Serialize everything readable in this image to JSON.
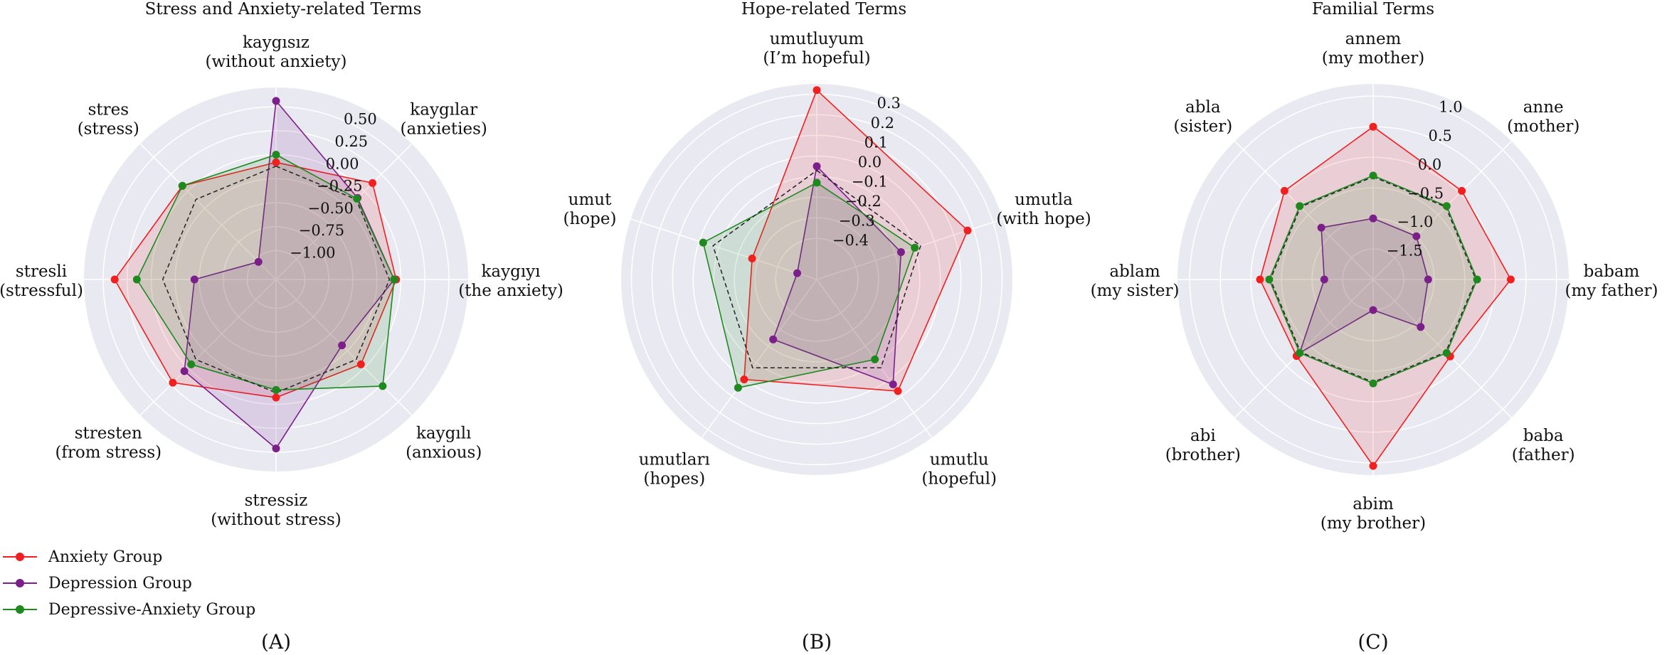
{
  "colors": {
    "anxiety": "#f21f1f",
    "depression": "#7d1f8a",
    "depressive_anxiety": "#1e8a1e",
    "baseline": "#222222",
    "background": "#e9e9f2",
    "grid": "#ffffff"
  },
  "legend": {
    "placement": "bottom-left",
    "items": [
      {
        "label": "Anxiety Group",
        "color": "#f21f1f"
      },
      {
        "label": "Depression Group",
        "color": "#7d1f8a"
      },
      {
        "label": "Depressive-Anxiety Group",
        "color": "#1e8a1e"
      }
    ]
  },
  "chart_data": [
    {
      "type": "radar",
      "panel_label": "(A)",
      "title": "Stress and Anxiety-related Terms",
      "rlim": [
        -1.3,
        0.7
      ],
      "rticks": [
        -1.0,
        -0.75,
        -0.5,
        -0.25,
        0.0,
        0.25,
        0.5
      ],
      "rtick_labels": [
        "−1.00",
        "−0.75",
        "−0.50",
        "−0.25",
        "0.00",
        "0.25",
        "0.50"
      ],
      "axes": [
        {
          "term": "kaygısız",
          "gloss": "(without anxiety)"
        },
        {
          "term": "kaygılar",
          "gloss": "(anxieties)"
        },
        {
          "term": "kaygıyı",
          "gloss": "(the anxiety)"
        },
        {
          "term": "kaygılı",
          "gloss": "(anxious)"
        },
        {
          "term": "stressiz",
          "gloss": "(without stress)"
        },
        {
          "term": "stresten",
          "gloss": "(from stress)"
        },
        {
          "term": "stresli",
          "gloss": "(stressful)"
        },
        {
          "term": "stres",
          "gloss": "(stress)"
        }
      ],
      "series": [
        {
          "name": "Anxiety Group",
          "values": [
            -0.08,
            0.12,
            -0.05,
            -0.05,
            -0.07,
            0.22,
            0.38,
            0.08
          ]
        },
        {
          "name": "Depression Group",
          "values": [
            0.56,
            -0.1,
            -0.07,
            -0.33,
            0.46,
            0.05,
            -0.45,
            -1.04
          ]
        },
        {
          "name": "Depressive-Anxiety Group",
          "values": [
            0.0,
            -0.11,
            -0.07,
            0.27,
            -0.15,
            -0.05,
            0.15,
            0.08
          ]
        }
      ],
      "baseline": [
        -0.12,
        -0.12,
        -0.12,
        -0.12,
        -0.12,
        -0.12,
        -0.12,
        -0.12
      ]
    },
    {
      "type": "radar",
      "panel_label": "(B)",
      "title": "Hope-related Terms",
      "rlim": [
        -0.6,
        0.35
      ],
      "rticks": [
        -0.4,
        -0.3,
        -0.2,
        -0.1,
        0.0,
        0.1,
        0.2,
        0.3
      ],
      "rtick_labels": [
        "−0.4",
        "−0.3",
        "−0.2",
        "−0.1",
        "0.0",
        "0.1",
        "0.2",
        "0.3"
      ],
      "axes": [
        {
          "term": "umutluyum",
          "gloss": "(I’m hopeful)"
        },
        {
          "term": "umutla",
          "gloss": "(with hope)"
        },
        {
          "term": "umutlu",
          "gloss": "(hopeful)"
        },
        {
          "term": "umutları",
          "gloss": "(hopes)"
        },
        {
          "term": "umut",
          "gloss": "(hope)"
        }
      ],
      "series": [
        {
          "name": "Anxiety Group",
          "values": [
            0.32,
            0.17,
            0.07,
            0.0,
            -0.27
          ]
        },
        {
          "name": "Depression Group",
          "values": [
            -0.05,
            -0.17,
            0.03,
            -0.24,
            -0.5
          ]
        },
        {
          "name": "Depressive-Anxiety Group",
          "values": [
            -0.13,
            -0.1,
            -0.12,
            0.05,
            -0.02
          ]
        }
      ],
      "baseline": [
        -0.07,
        -0.07,
        -0.07,
        -0.07,
        -0.07
      ]
    },
    {
      "type": "radar",
      "panel_label": "(C)",
      "title": "Familial Terms",
      "rlim": [
        -2.0,
        1.2
      ],
      "rticks": [
        -1.5,
        -1.0,
        -0.5,
        0.0,
        0.5,
        1.0
      ],
      "rtick_labels": [
        "−1.5",
        "−1.0",
        "−0.5",
        "0.0",
        "0.5",
        "1.0"
      ],
      "axes": [
        {
          "term": "annem",
          "gloss": "(my mother)"
        },
        {
          "term": "anne",
          "gloss": "(mother)"
        },
        {
          "term": "babam",
          "gloss": "(my father)"
        },
        {
          "term": "baba",
          "gloss": "(father)"
        },
        {
          "term": "abim",
          "gloss": "(my brother)"
        },
        {
          "term": "abi",
          "gloss": "(brother)"
        },
        {
          "term": "ablam",
          "gloss": "(my sister)"
        },
        {
          "term": "abla",
          "gloss": "(sister)"
        }
      ],
      "series": [
        {
          "name": "Anxiety Group",
          "values": [
            0.5,
            0.05,
            0.25,
            -0.22,
            1.05,
            -0.23,
            -0.15,
            0.05
          ]
        },
        {
          "name": "Depression Group",
          "values": [
            -1.0,
            -1.0,
            -1.1,
            -0.9,
            -1.5,
            -0.3,
            -1.2,
            -0.8
          ]
        },
        {
          "name": "Depressive-Anxiety Group",
          "values": [
            -0.3,
            -0.3,
            -0.3,
            -0.3,
            -0.3,
            -0.3,
            -0.3,
            -0.3
          ]
        }
      ],
      "baseline": [
        -0.32,
        -0.32,
        -0.32,
        -0.32,
        -0.32,
        -0.32,
        -0.32,
        -0.32
      ]
    }
  ]
}
